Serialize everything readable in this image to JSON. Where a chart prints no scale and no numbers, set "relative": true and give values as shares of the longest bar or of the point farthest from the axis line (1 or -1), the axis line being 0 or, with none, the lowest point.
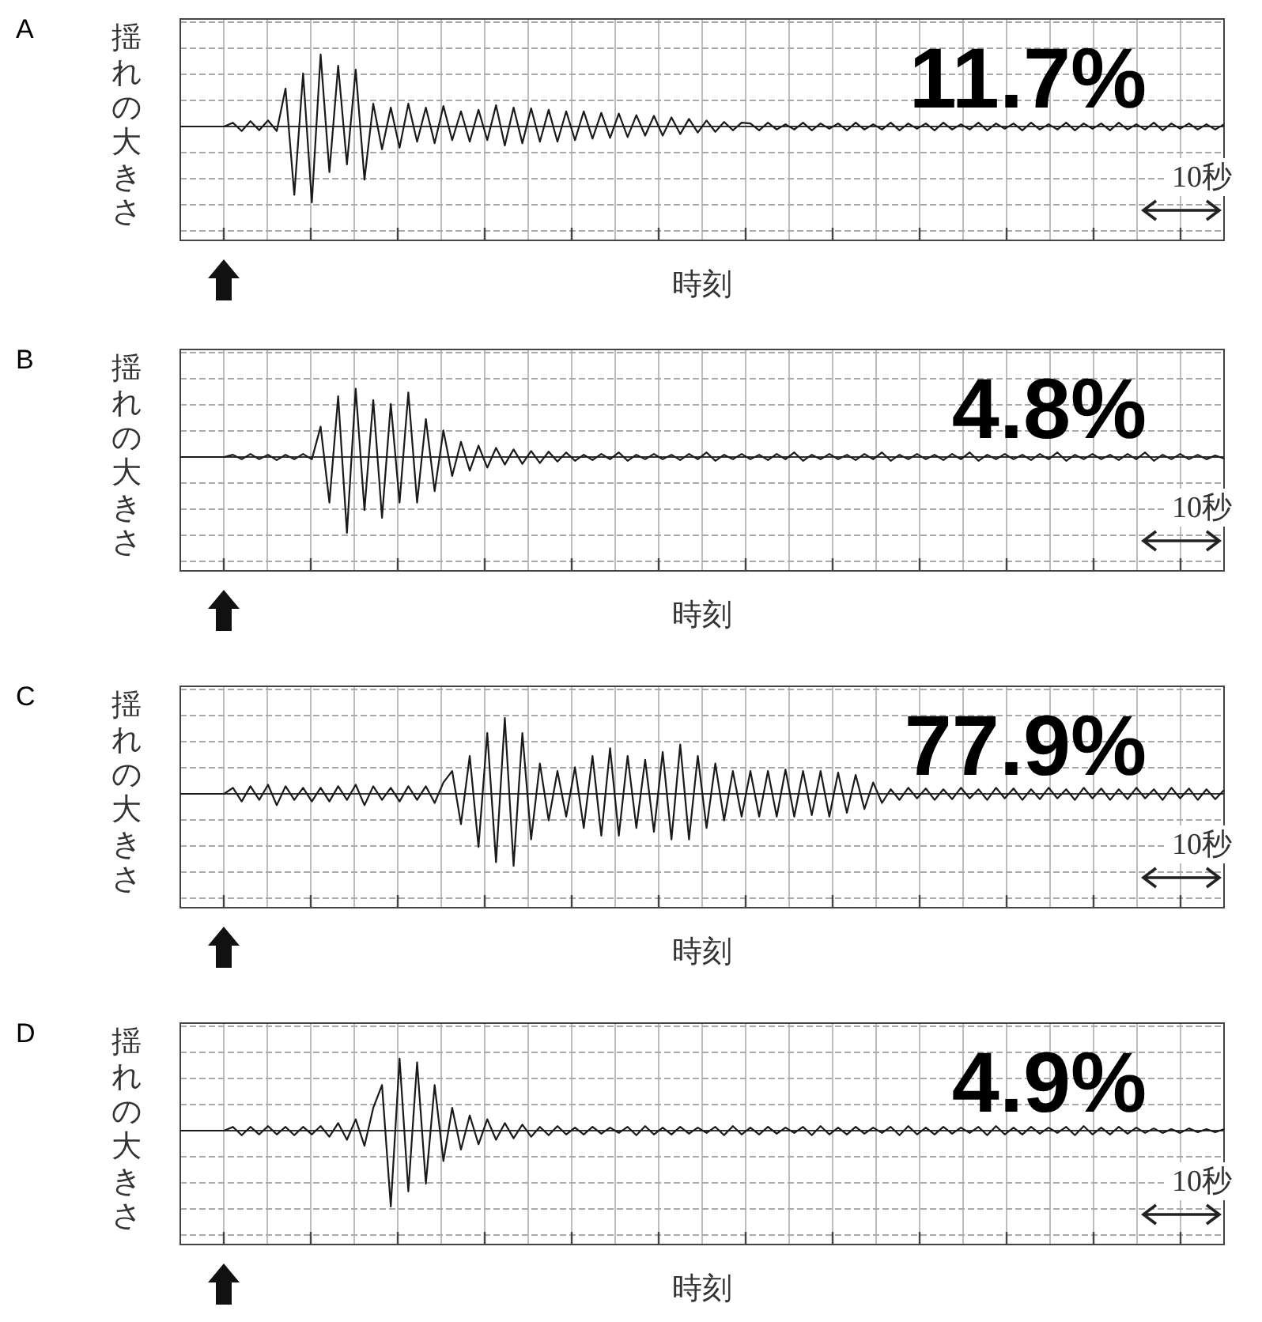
{
  "chart_data": [
    {
      "type": "line",
      "title": "A",
      "ylabel": "揺れの大きさ",
      "xlabel": "時刻",
      "relative": true,
      "grid": true,
      "marker": "none",
      "line_style": "solid",
      "categories": [
        null,
        null,
        null,
        null,
        null,
        null,
        null,
        null,
        null,
        null,
        null,
        null,
        null,
        null,
        null,
        null,
        null,
        null,
        null,
        null,
        null,
        null,
        null,
        null,
        null,
        null,
        null,
        null,
        null,
        null,
        null,
        null,
        null,
        null,
        null,
        null,
        null,
        null,
        null,
        null,
        null,
        null,
        null,
        null,
        null,
        null,
        null,
        null,
        null,
        null,
        null,
        null,
        null,
        null,
        null,
        null,
        null,
        null,
        null,
        null,
        null,
        null,
        null,
        null,
        null,
        null,
        null,
        null,
        null,
        null,
        null,
        null,
        null,
        null,
        null,
        null,
        null,
        null,
        null,
        null,
        null,
        null,
        null,
        null,
        null,
        null,
        null,
        null,
        null,
        null,
        null,
        null,
        null,
        null,
        null,
        null,
        null,
        null,
        null,
        null,
        null,
        null,
        null,
        null,
        null,
        null,
        null,
        null,
        null,
        null,
        null,
        null,
        null,
        null,
        null,
        null,
        null,
        null,
        null,
        null
      ],
      "series": [
        {
          "color": "#1a1a1a",
          "values": [
            0,
            0,
            0,
            0,
            0,
            0,
            0.05,
            -0.06,
            0.07,
            -0.05,
            0.08,
            -0.06,
            0.5,
            -0.9,
            0.7,
            -1,
            0.95,
            -0.6,
            0.8,
            -0.5,
            0.75,
            -0.7,
            0.3,
            -0.3,
            0.25,
            -0.28,
            0.3,
            -0.2,
            0.25,
            -0.22,
            0.27,
            -0.18,
            0.2,
            -0.2,
            0.22,
            -0.18,
            0.28,
            -0.25,
            0.25,
            -0.22,
            0.24,
            -0.2,
            0.22,
            -0.2,
            0.2,
            -0.18,
            0.2,
            -0.16,
            0.18,
            -0.15,
            0.17,
            -0.14,
            0.15,
            -0.12,
            0.14,
            -0.12,
            0.12,
            -0.1,
            0.1,
            -0.08,
            0.08,
            -0.07,
            0.06,
            -0.05,
            0.05,
            0.04,
            -0.05,
            0.05,
            -0.04,
            0.03,
            -0.04,
            0.05,
            -0.05,
            0.04,
            -0.03,
            0.04,
            -0.05,
            0.05,
            -0.04,
            0.03,
            -0.04,
            0.05,
            -0.05,
            0.04,
            -0.03,
            0.04,
            -0.05,
            0.05,
            -0.04,
            0.03,
            -0.04,
            0.05,
            -0.05,
            0.04,
            -0.03,
            0.04,
            -0.05,
            0.05,
            -0.04,
            0.03,
            -0.04,
            0.05,
            -0.05,
            0.04,
            -0.03,
            0.04,
            -0.05,
            0.05,
            -0.04,
            0.03,
            -0.04,
            0.05,
            -0.05,
            0.04,
            -0.03,
            0.04,
            -0.04,
            0.03,
            -0.04,
            0.03
          ]
        }
      ],
      "annotations": [
        "11.7%",
        "10秒"
      ]
    },
    {
      "type": "line",
      "title": "B",
      "ylabel": "揺れの大きさ",
      "xlabel": "時刻",
      "relative": true,
      "grid": true,
      "marker": "none",
      "line_style": "solid",
      "categories": [
        null,
        null,
        null,
        null,
        null,
        null,
        null,
        null,
        null,
        null,
        null,
        null,
        null,
        null,
        null,
        null,
        null,
        null,
        null,
        null,
        null,
        null,
        null,
        null,
        null,
        null,
        null,
        null,
        null,
        null,
        null,
        null,
        null,
        null,
        null,
        null,
        null,
        null,
        null,
        null,
        null,
        null,
        null,
        null,
        null,
        null,
        null,
        null,
        null,
        null,
        null,
        null,
        null,
        null,
        null,
        null,
        null,
        null,
        null,
        null,
        null,
        null,
        null,
        null,
        null,
        null,
        null,
        null,
        null,
        null,
        null,
        null,
        null,
        null,
        null,
        null,
        null,
        null,
        null,
        null,
        null,
        null,
        null,
        null,
        null,
        null,
        null,
        null,
        null,
        null,
        null,
        null,
        null,
        null,
        null,
        null,
        null,
        null,
        null,
        null,
        null,
        null,
        null,
        null,
        null,
        null,
        null,
        null,
        null,
        null,
        null,
        null,
        null,
        null,
        null,
        null,
        null,
        null,
        null,
        null
      ],
      "series": [
        {
          "color": "#1a1a1a",
          "values": [
            0,
            0,
            0,
            0,
            0,
            0,
            0.03,
            -0.03,
            0.04,
            -0.03,
            0.03,
            -0.04,
            0.03,
            -0.03,
            0.04,
            -0.03,
            0.4,
            -0.6,
            0.8,
            -1,
            0.9,
            -0.7,
            0.75,
            -0.8,
            0.7,
            -0.6,
            0.85,
            -0.6,
            0.5,
            -0.45,
            0.35,
            -0.25,
            0.2,
            -0.18,
            0.15,
            -0.14,
            0.12,
            -0.1,
            0.1,
            -0.09,
            0.08,
            -0.08,
            0.07,
            -0.06,
            0.06,
            -0.05,
            0.03,
            -0.04,
            0.04,
            -0.03,
            0.06,
            -0.05,
            0.03,
            -0.03,
            0.04,
            -0.03,
            0.03,
            -0.04,
            0.04,
            -0.03,
            0.06,
            -0.05,
            0.03,
            -0.03,
            0.04,
            -0.03,
            0.03,
            -0.04,
            0.04,
            -0.03,
            0.06,
            -0.05,
            0.03,
            -0.03,
            0.04,
            -0.03,
            0.03,
            -0.04,
            0.04,
            -0.03,
            0.06,
            -0.05,
            0.03,
            -0.03,
            0.04,
            -0.03,
            0.03,
            -0.04,
            0.04,
            -0.03,
            0.06,
            -0.05,
            0.03,
            -0.03,
            0.04,
            -0.03,
            0.03,
            -0.04,
            0.04,
            -0.03,
            0.06,
            -0.05,
            0.03,
            -0.03,
            0.04,
            -0.03,
            0.03,
            -0.04,
            0.04,
            -0.03,
            0.06,
            -0.05,
            0.03,
            -0.03,
            0.04,
            -0.03,
            0.03,
            -0.03,
            0.02,
            -0.02
          ]
        }
      ],
      "annotations": [
        "4.8%",
        "10秒"
      ]
    },
    {
      "type": "line",
      "title": "C",
      "ylabel": "揺れの大きさ",
      "xlabel": "時刻",
      "relative": true,
      "grid": true,
      "marker": "none",
      "line_style": "solid",
      "categories": [
        null,
        null,
        null,
        null,
        null,
        null,
        null,
        null,
        null,
        null,
        null,
        null,
        null,
        null,
        null,
        null,
        null,
        null,
        null,
        null,
        null,
        null,
        null,
        null,
        null,
        null,
        null,
        null,
        null,
        null,
        null,
        null,
        null,
        null,
        null,
        null,
        null,
        null,
        null,
        null,
        null,
        null,
        null,
        null,
        null,
        null,
        null,
        null,
        null,
        null,
        null,
        null,
        null,
        null,
        null,
        null,
        null,
        null,
        null,
        null,
        null,
        null,
        null,
        null,
        null,
        null,
        null,
        null,
        null,
        null,
        null,
        null,
        null,
        null,
        null,
        null,
        null,
        null,
        null,
        null,
        null,
        null,
        null,
        null,
        null,
        null,
        null,
        null,
        null,
        null,
        null,
        null,
        null,
        null,
        null,
        null,
        null,
        null,
        null,
        null,
        null,
        null,
        null,
        null,
        null,
        null,
        null,
        null,
        null,
        null,
        null,
        null,
        null,
        null,
        null,
        null,
        null,
        null,
        null,
        null
      ],
      "series": [
        {
          "color": "#1a1a1a",
          "values": [
            0,
            0,
            0,
            0,
            0,
            0,
            0.08,
            -0.1,
            0.1,
            -0.08,
            0.12,
            -0.15,
            0.1,
            -0.08,
            0.08,
            -0.1,
            0.08,
            -0.1,
            0.1,
            -0.08,
            0.12,
            -0.15,
            0.1,
            -0.08,
            0.08,
            -0.1,
            0.1,
            -0.08,
            0.1,
            -0.12,
            0.15,
            0.3,
            -0.4,
            0.5,
            -0.7,
            0.8,
            -0.9,
            1,
            -0.95,
            0.8,
            -0.6,
            0.4,
            -0.35,
            0.3,
            -0.3,
            0.35,
            -0.45,
            0.5,
            -0.55,
            0.6,
            -0.55,
            0.5,
            -0.45,
            0.45,
            -0.5,
            0.55,
            -0.6,
            0.65,
            -0.6,
            0.5,
            -0.45,
            0.4,
            -0.35,
            0.3,
            -0.3,
            0.3,
            -0.3,
            0.3,
            -0.3,
            0.32,
            -0.3,
            0.3,
            -0.28,
            0.3,
            -0.3,
            0.28,
            -0.25,
            0.25,
            -0.2,
            0.15,
            -0.12,
            0.06,
            -0.08,
            0.08,
            -0.06,
            0.07,
            -0.08,
            0.06,
            -0.07,
            0.08,
            -0.06,
            0.06,
            -0.08,
            0.08,
            -0.06,
            0.07,
            -0.08,
            0.06,
            -0.07,
            0.08,
            -0.06,
            0.06,
            -0.08,
            0.08,
            -0.06,
            0.07,
            -0.08,
            0.06,
            -0.07,
            0.08,
            -0.06,
            0.06,
            -0.08,
            0.08,
            -0.06,
            0.07,
            -0.08,
            0.06,
            -0.07,
            0.05
          ]
        }
      ],
      "annotations": [
        "77.9%",
        "10秒"
      ]
    },
    {
      "type": "line",
      "title": "D",
      "ylabel": "揺れの大きさ",
      "xlabel": "時刻",
      "relative": true,
      "grid": true,
      "marker": "none",
      "line_style": "solid",
      "categories": [
        null,
        null,
        null,
        null,
        null,
        null,
        null,
        null,
        null,
        null,
        null,
        null,
        null,
        null,
        null,
        null,
        null,
        null,
        null,
        null,
        null,
        null,
        null,
        null,
        null,
        null,
        null,
        null,
        null,
        null,
        null,
        null,
        null,
        null,
        null,
        null,
        null,
        null,
        null,
        null,
        null,
        null,
        null,
        null,
        null,
        null,
        null,
        null,
        null,
        null,
        null,
        null,
        null,
        null,
        null,
        null,
        null,
        null,
        null,
        null,
        null,
        null,
        null,
        null,
        null,
        null,
        null,
        null,
        null,
        null,
        null,
        null,
        null,
        null,
        null,
        null,
        null,
        null,
        null,
        null,
        null,
        null,
        null,
        null,
        null,
        null,
        null,
        null,
        null,
        null,
        null,
        null,
        null,
        null,
        null,
        null,
        null,
        null,
        null,
        null,
        null,
        null,
        null,
        null,
        null,
        null,
        null,
        null,
        null,
        null,
        null,
        null,
        null,
        null,
        null,
        null,
        null,
        null,
        null,
        null
      ],
      "series": [
        {
          "color": "#1a1a1a",
          "values": [
            0,
            0,
            0,
            0,
            0,
            0,
            0.05,
            -0.06,
            0.05,
            -0.05,
            0.06,
            -0.05,
            0.05,
            -0.06,
            0.05,
            -0.05,
            0.06,
            -0.08,
            0.1,
            -0.12,
            0.15,
            -0.2,
            0.3,
            0.6,
            -1,
            0.95,
            -0.8,
            0.9,
            -0.7,
            0.6,
            -0.4,
            0.3,
            -0.25,
            0.2,
            -0.18,
            0.15,
            -0.12,
            0.1,
            -0.1,
            0.08,
            -0.08,
            0.05,
            -0.06,
            0.06,
            -0.05,
            0.04,
            -0.05,
            0.05,
            -0.04,
            0.04,
            -0.03,
            0.05,
            -0.06,
            0.06,
            -0.05,
            0.04,
            -0.05,
            0.05,
            -0.04,
            0.04,
            -0.03,
            0.05,
            -0.06,
            0.06,
            -0.05,
            0.04,
            -0.05,
            0.05,
            -0.04,
            0.04,
            -0.03,
            0.05,
            -0.06,
            0.06,
            -0.05,
            0.04,
            -0.05,
            0.05,
            -0.04,
            0.04,
            -0.03,
            0.05,
            -0.06,
            0.06,
            -0.05,
            0.04,
            -0.05,
            0.05,
            -0.04,
            0.04,
            -0.03,
            0.05,
            -0.06,
            0.06,
            -0.05,
            0.04,
            -0.05,
            0.05,
            -0.04,
            0.04,
            -0.03,
            0.05,
            -0.06,
            0.06,
            -0.05,
            0.04,
            -0.05,
            0.05,
            -0.04,
            0.04,
            -0.03,
            0.03,
            -0.03,
            0.02,
            -0.03,
            0.03,
            -0.02,
            0.02,
            -0.02,
            0.02
          ]
        }
      ],
      "annotations": [
        "4.9%",
        "10秒"
      ]
    }
  ]
}
